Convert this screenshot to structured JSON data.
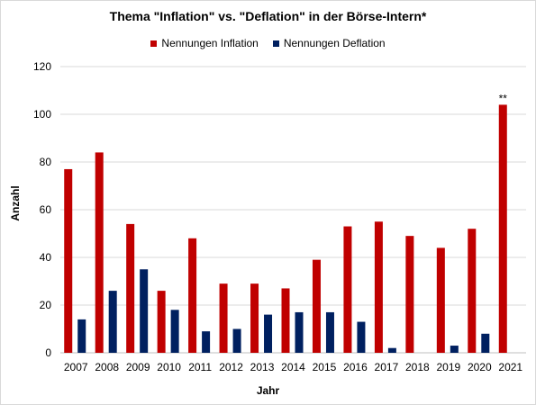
{
  "chart_data": {
    "type": "bar",
    "title": "Thema \"Inflation\" vs. \"Deflation\" in der Börse-Intern*",
    "xlabel": "Jahr",
    "ylabel": "Anzahl",
    "ylim": [
      0,
      120
    ],
    "yticks": [
      "0",
      "20",
      "40",
      "60",
      "80",
      "100",
      "120"
    ],
    "grid": true,
    "legend_position": "top",
    "categories": [
      "2007",
      "2008",
      "2009",
      "2010",
      "2011",
      "2012",
      "2013",
      "2014",
      "2015",
      "2016",
      "2017",
      "2018",
      "2019",
      "2020",
      "2021"
    ],
    "series": [
      {
        "name": "Nennungen Inflation",
        "color": "#c00000",
        "values": [
          77,
          84,
          54,
          26,
          48,
          29,
          29,
          27,
          39,
          53,
          55,
          49,
          44,
          52,
          104
        ]
      },
      {
        "name": "Nennungen Deflation",
        "color": "#002060",
        "values": [
          14,
          26,
          35,
          18,
          9,
          10,
          16,
          17,
          17,
          13,
          2,
          0,
          3,
          8,
          null
        ]
      }
    ],
    "annotations": [
      {
        "category": "2021",
        "series": "Nennungen Inflation",
        "text": "**"
      }
    ]
  }
}
